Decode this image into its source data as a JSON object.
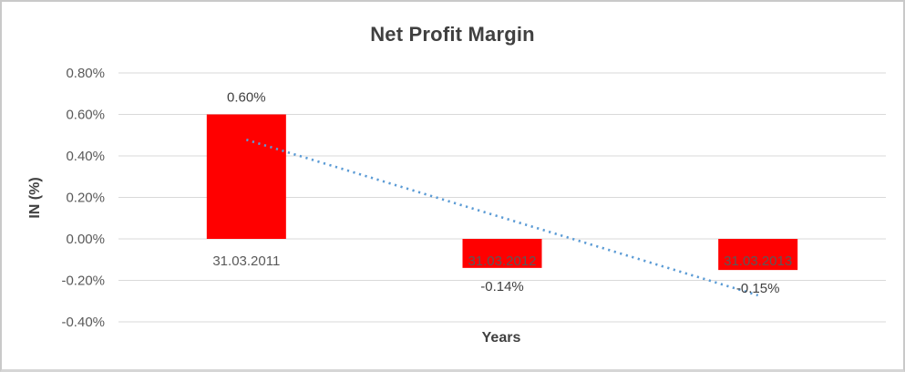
{
  "chart": {
    "title": "Net Profit Margin",
    "x_axis_title": "Years",
    "y_axis_title": "IN (%)"
  },
  "chart_data": {
    "type": "bar",
    "title": "Net Profit Margin",
    "xlabel": "Years",
    "ylabel": "IN (%)",
    "categories": [
      "31.03.2011",
      "31.03.2012",
      "31.03.2013"
    ],
    "series": [
      {
        "name": "Net Profit Margin",
        "values": [
          0.6,
          -0.14,
          -0.15
        ]
      }
    ],
    "data_labels": [
      "0.60%",
      "-0.14%",
      "-0.15%"
    ],
    "ylim": [
      -0.4,
      0.8
    ],
    "ytick_step": 0.2,
    "ytick_labels": [
      "0.80%",
      "0.60%",
      "0.40%",
      "0.20%",
      "0.00%",
      "-0.20%",
      "-0.40%"
    ],
    "grid": true,
    "legend": "none",
    "trendline": {
      "type": "linear",
      "start_value": 0.478,
      "end_value": -0.272,
      "style": "dotted",
      "color": "#5B9BD5"
    },
    "colors": {
      "bar": "#FF0000",
      "gridline": "#D9D9D9",
      "tick_text": "#595959",
      "title_text": "#404040"
    }
  }
}
